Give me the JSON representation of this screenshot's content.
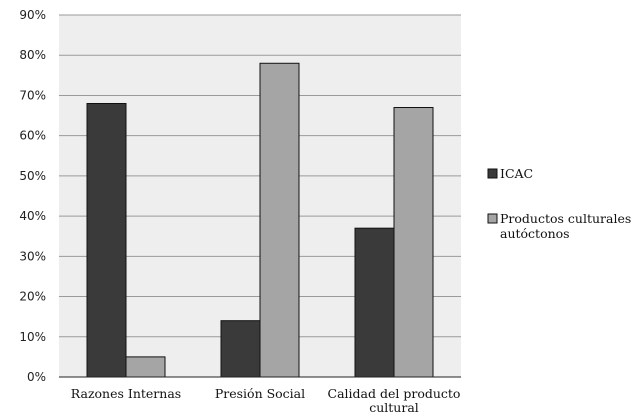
{
  "chart_data": {
    "type": "bar",
    "categories": [
      [
        "Razones Internas"
      ],
      [
        "Presión Social"
      ],
      [
        "Calidad del producto",
        "cultural"
      ]
    ],
    "series": [
      {
        "name": "ICAC",
        "color": "#3a3a3a",
        "values": [
          68,
          14,
          37
        ]
      },
      {
        "name": "Productos culturales autóctonos",
        "legend_lines": [
          "Productos culturales",
          "autóctonos"
        ],
        "color": "#a5a5a5",
        "values": [
          5,
          78,
          67
        ]
      }
    ],
    "y_ticks": [
      "0%",
      "10%",
      "20%",
      "30%",
      "40%",
      "50%",
      "60%",
      "70%",
      "80%",
      "90%"
    ],
    "ylim": [
      0,
      90
    ],
    "grid": true,
    "legend_position": "right",
    "plot_background": "#eeeeee",
    "title": "",
    "xlabel": "",
    "ylabel": ""
  }
}
